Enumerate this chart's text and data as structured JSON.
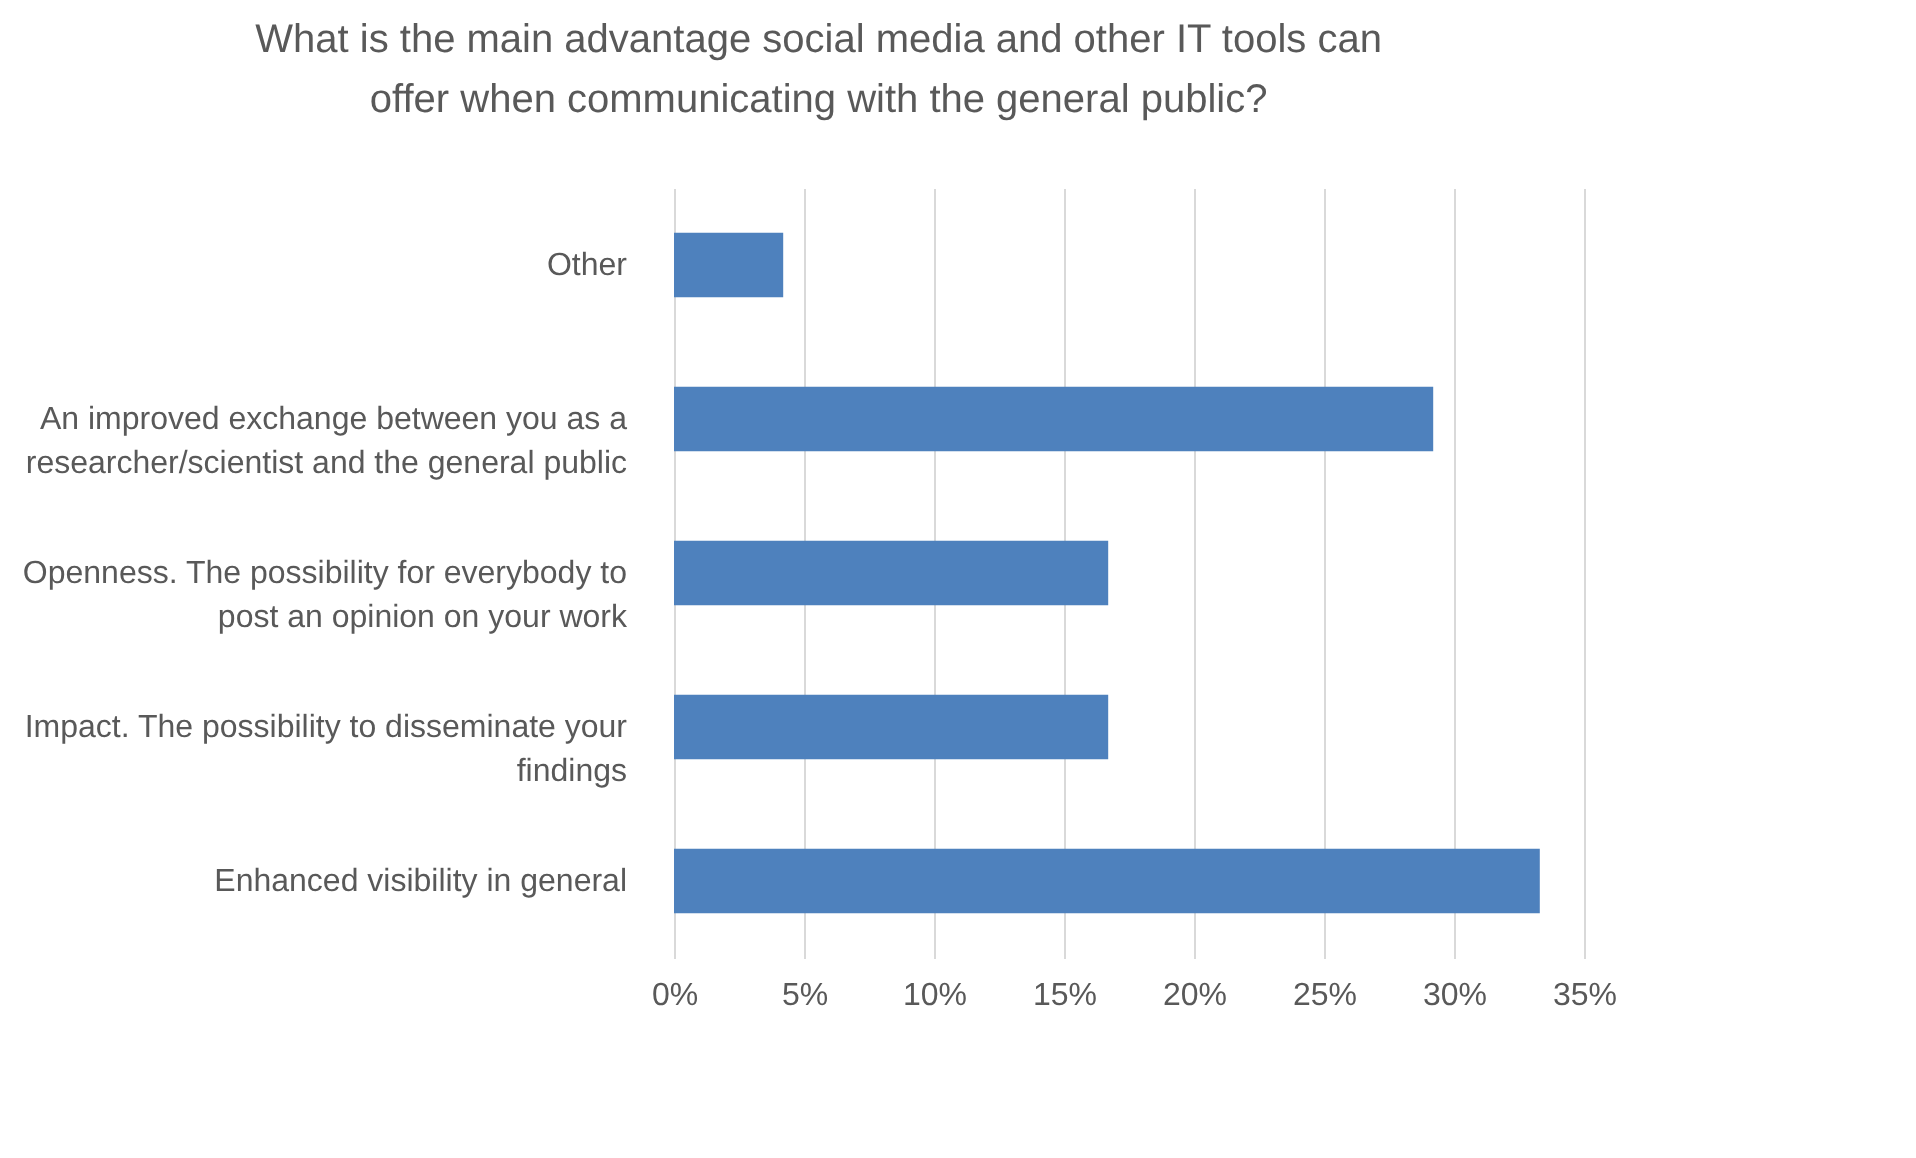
{
  "chart_data": {
    "type": "bar",
    "orientation": "horizontal",
    "title": "What is the main advantage social media and other IT tools can offer when communicating with the general public?",
    "categories": [
      "Other",
      "An improved exchange between you as a researcher/scientist and the general public",
      "Openness. The possibility for everybody to post an opinion on your work",
      "Impact. The possibility to disseminate your findings",
      "Enhanced visibility in general"
    ],
    "values": [
      4.2,
      29.2,
      16.7,
      16.7,
      33.3
    ],
    "color": "#4e81bd",
    "xlim": [
      0,
      35
    ],
    "xticks": [
      {
        "value": 0,
        "label": "0%"
      },
      {
        "value": 5,
        "label": "5%"
      },
      {
        "value": 10,
        "label": "10%"
      },
      {
        "value": 15,
        "label": "15%"
      },
      {
        "value": 20,
        "label": "20%"
      },
      {
        "value": 25,
        "label": "25%"
      },
      {
        "value": 30,
        "label": "30%"
      },
      {
        "value": 35,
        "label": "35%"
      }
    ],
    "grid": "x"
  }
}
